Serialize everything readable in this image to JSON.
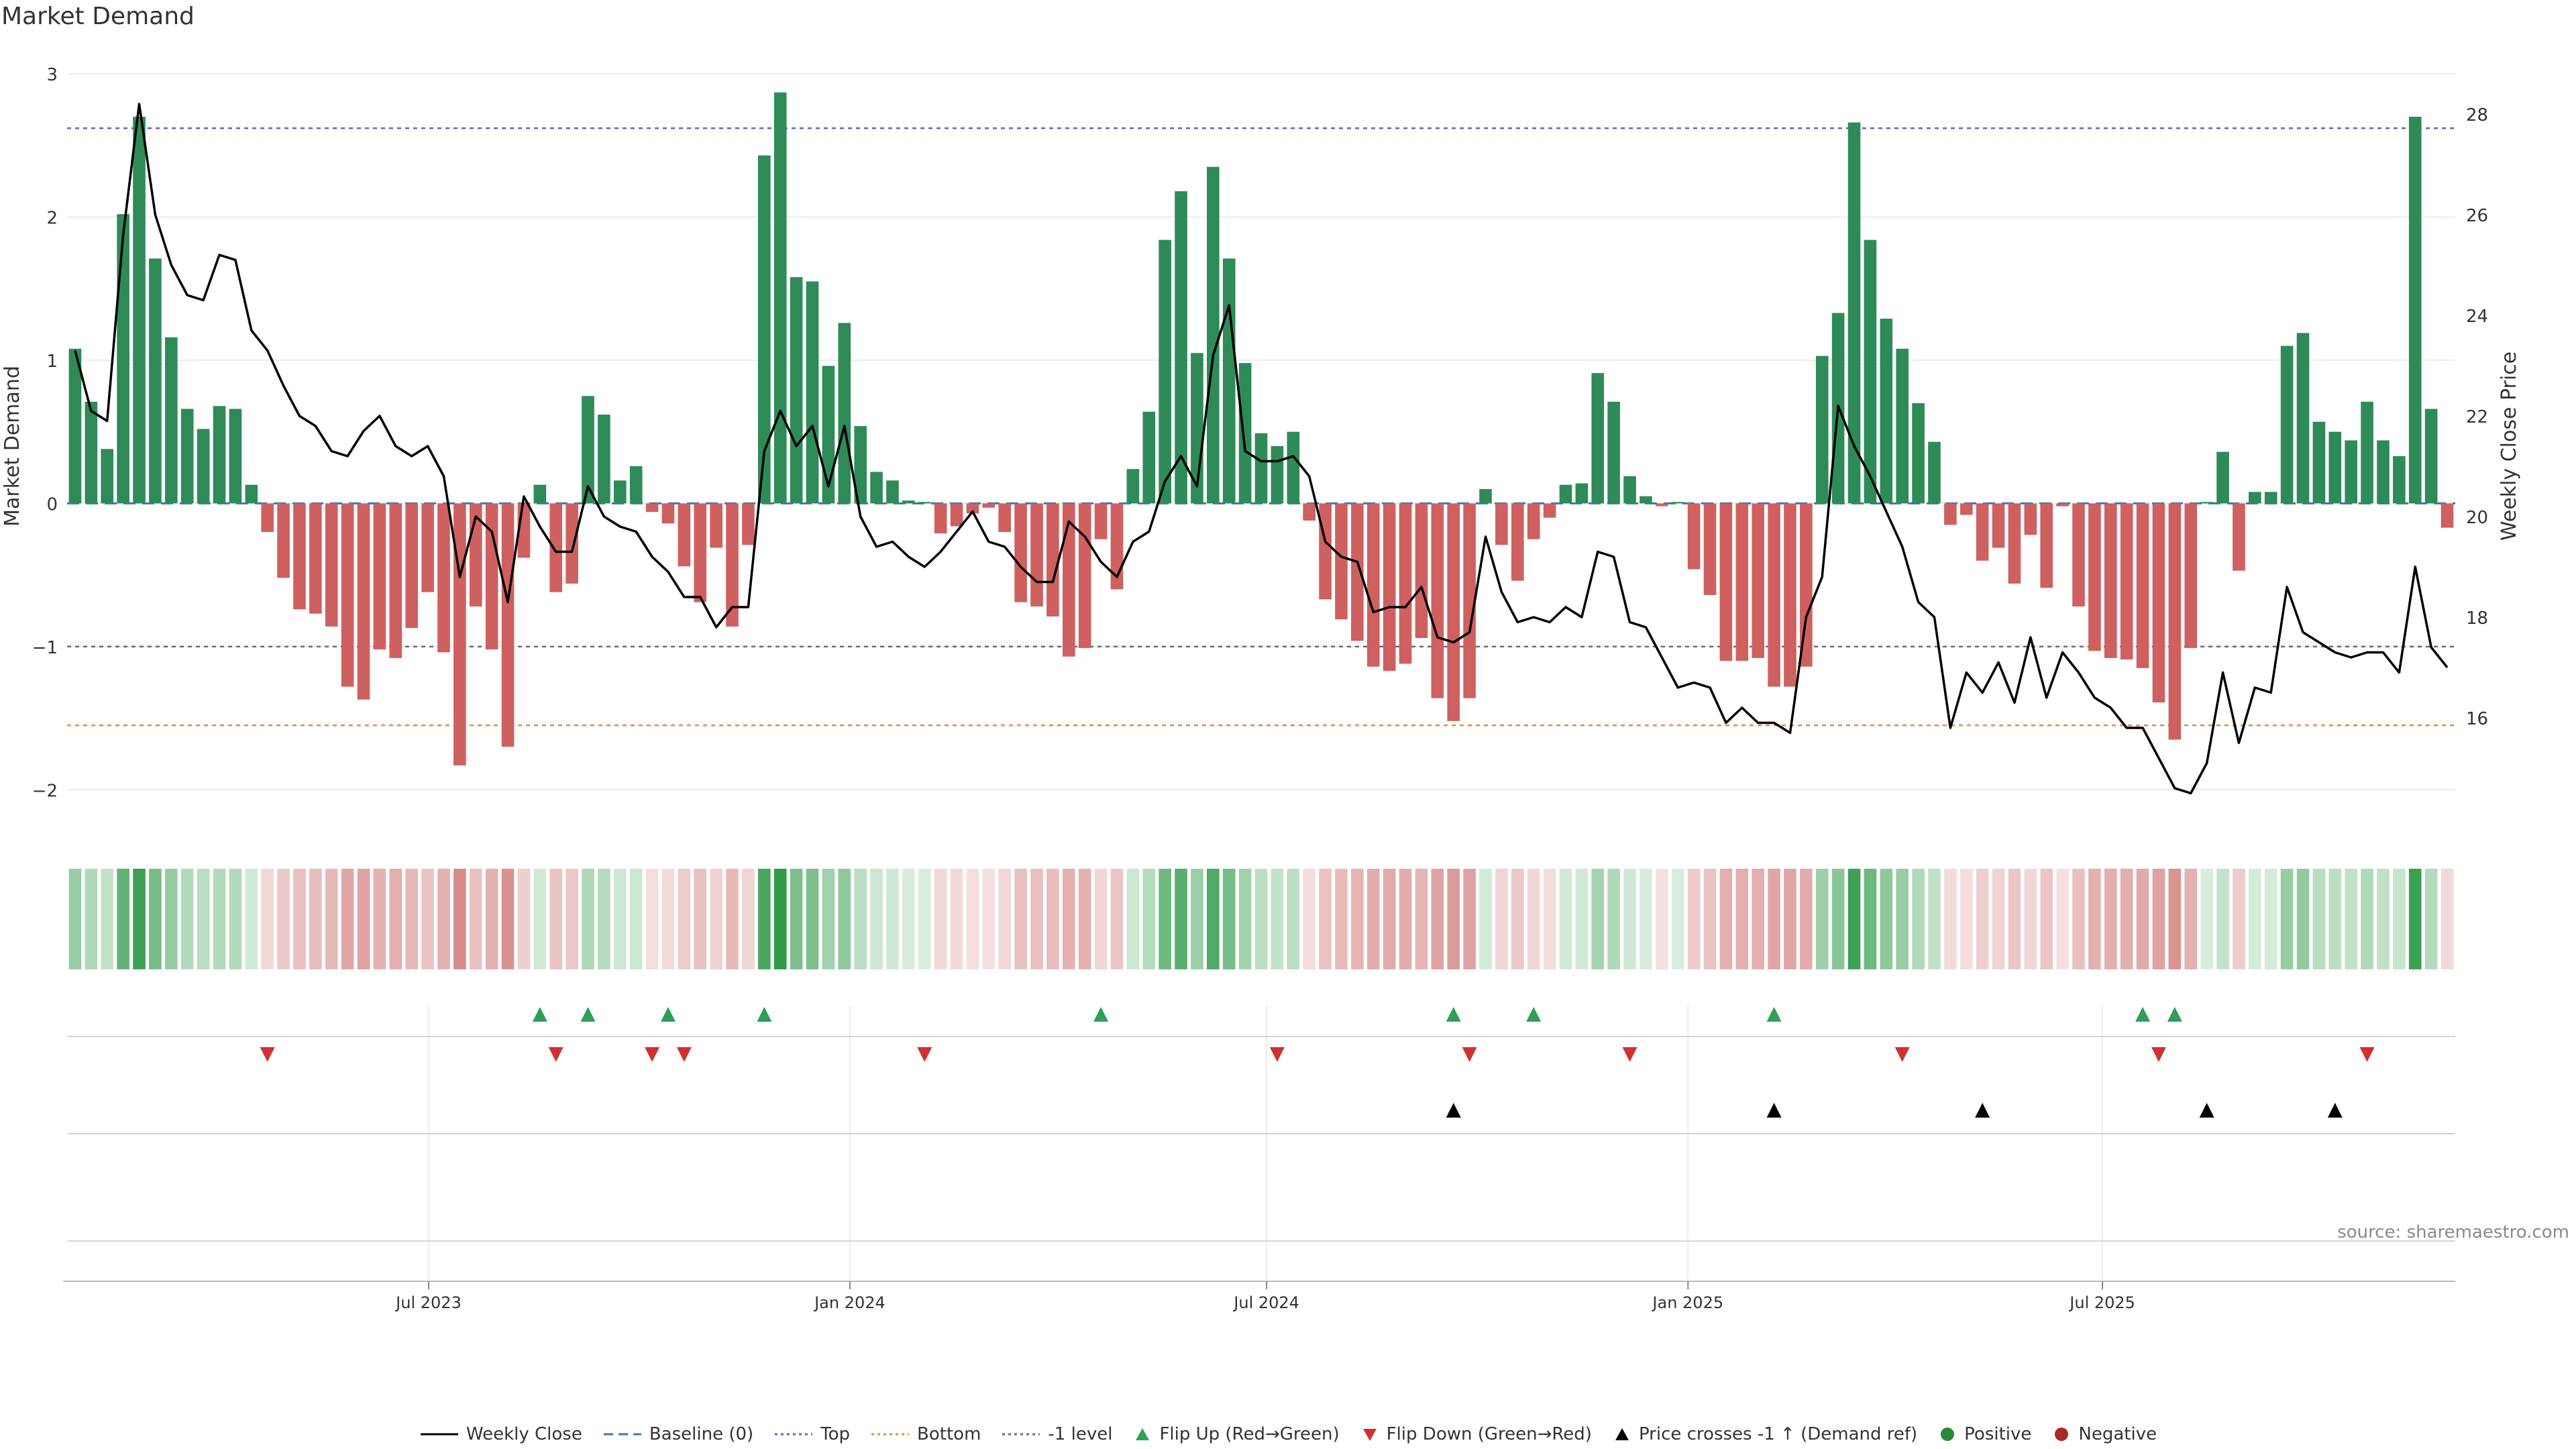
{
  "title": "Market Demand",
  "source": "source: sharemaestro.com",
  "chart_data": {
    "type": "bar",
    "title": "Market Demand",
    "xlabel": "",
    "ylabel": "Market Demand",
    "y2label": "Weekly Close Price",
    "ylim": [
      -2.2,
      3.0
    ],
    "y2lim": [
      14.0,
      28.8
    ],
    "yticks": [
      3,
      2,
      1,
      0,
      -1,
      -2
    ],
    "y2ticks": [
      28,
      26,
      24,
      22,
      20,
      18,
      16
    ],
    "ytick_labels": [
      "3",
      "2",
      "1",
      "0",
      "−1",
      "−2"
    ],
    "y2tick_labels": [
      "28",
      "26",
      "24",
      "22",
      "20",
      "18",
      "16"
    ],
    "x_start": "2023-01-06",
    "x_interval_days": 7,
    "xticks": [
      {
        "label": "Jul 2023",
        "index": 22.06
      },
      {
        "label": "Jan 2024",
        "index": 48.34
      },
      {
        "label": "Jul 2024",
        "index": 74.34
      },
      {
        "label": "Jan 2025",
        "index": 100.63
      },
      {
        "label": "Jul 2025",
        "index": 126.49
      }
    ],
    "reference_lines": [
      {
        "name": "Top",
        "value": 2.62,
        "color": "#6f5fb5"
      },
      {
        "name": "-1 level",
        "value": -1.0,
        "color": "#6a6a7a"
      },
      {
        "name": "Bottom",
        "value": -1.55,
        "color": "#d9962a"
      },
      {
        "name": "Baseline (0)",
        "value": 0,
        "color": "#3a76b6"
      }
    ],
    "series": [
      {
        "name": "Market Demand",
        "axis": "left",
        "values": [
          1.08,
          0.71,
          0.38,
          2.02,
          2.7,
          1.71,
          1.16,
          0.66,
          0.52,
          0.68,
          0.66,
          0.13,
          -0.2,
          -0.52,
          -0.74,
          -0.77,
          -0.86,
          -1.28,
          -1.37,
          -1.02,
          -1.08,
          -0.87,
          -0.62,
          -1.04,
          -1.83,
          -0.72,
          -1.02,
          -1.7,
          -0.38,
          0.13,
          -0.62,
          -0.56,
          0.75,
          0.62,
          0.16,
          0.26,
          -0.06,
          -0.14,
          -0.44,
          -0.69,
          -0.31,
          -0.86,
          -0.29,
          2.43,
          2.87,
          1.58,
          1.55,
          0.96,
          1.26,
          0.54,
          0.22,
          0.16,
          0.02,
          0.01,
          -0.21,
          -0.16,
          -0.07,
          -0.03,
          -0.2,
          -0.69,
          -0.72,
          -0.79,
          -1.07,
          -1.01,
          -0.25,
          -0.6,
          0.24,
          0.64,
          1.84,
          2.18,
          1.05,
          2.35,
          1.71,
          0.98,
          0.49,
          0.4,
          0.5,
          -0.12,
          -0.67,
          -0.81,
          -0.96,
          -1.14,
          -1.17,
          -1.12,
          -0.94,
          -1.36,
          -1.52,
          -1.36,
          0.1,
          -0.29,
          -0.54,
          -0.25,
          -0.1,
          0.13,
          0.14,
          0.91,
          0.71,
          0.19,
          0.05,
          -0.02,
          0.01,
          -0.46,
          -0.64,
          -1.1,
          -1.1,
          -1.08,
          -1.28,
          -1.28,
          -1.14,
          1.03,
          1.33,
          2.66,
          1.84,
          1.29,
          1.08,
          0.7,
          0.43,
          -0.15,
          -0.08,
          -0.4,
          -0.31,
          -0.56,
          -0.22,
          -0.59,
          -0.02,
          -0.72,
          -1.03,
          -1.08,
          -1.09,
          -1.15,
          -1.39,
          -1.65,
          -1.01,
          0.01,
          0.36,
          -0.47,
          0.08,
          0.08,
          1.1,
          1.19,
          0.57,
          0.5,
          0.44,
          0.71,
          0.44,
          0.33,
          2.7,
          0.66,
          -0.17
        ]
      },
      {
        "name": "Weekly Close",
        "axis": "right",
        "values": [
          23.3,
          22.1,
          21.9,
          25.6,
          28.2,
          26.0,
          25.0,
          24.4,
          24.3,
          25.2,
          25.1,
          23.7,
          23.3,
          22.6,
          22.0,
          21.8,
          21.3,
          21.2,
          21.7,
          22.0,
          21.4,
          21.2,
          21.4,
          20.8,
          18.8,
          20.0,
          19.7,
          18.3,
          20.4,
          19.8,
          19.3,
          19.3,
          20.6,
          20.0,
          19.8,
          19.7,
          19.2,
          18.9,
          18.4,
          18.4,
          17.8,
          18.2,
          18.2,
          21.3,
          22.1,
          21.4,
          21.8,
          20.6,
          21.8,
          20.0,
          19.4,
          19.5,
          19.2,
          19.0,
          19.3,
          19.7,
          20.1,
          19.5,
          19.4,
          19.0,
          18.7,
          18.7,
          19.9,
          19.6,
          19.1,
          18.8,
          19.5,
          19.7,
          20.7,
          21.2,
          20.6,
          23.2,
          24.2,
          21.3,
          21.1,
          21.1,
          21.2,
          20.8,
          19.5,
          19.2,
          19.1,
          18.1,
          18.2,
          18.2,
          18.6,
          17.6,
          17.5,
          17.7,
          19.6,
          18.5,
          17.9,
          18.0,
          17.9,
          18.2,
          18.0,
          19.3,
          19.2,
          17.9,
          17.8,
          17.2,
          16.6,
          16.7,
          16.6,
          15.9,
          16.2,
          15.9,
          15.9,
          15.7,
          18.0,
          18.8,
          22.2,
          21.4,
          20.8,
          20.1,
          19.4,
          18.3,
          18.0,
          15.8,
          16.9,
          16.5,
          17.1,
          16.3,
          17.6,
          16.4,
          17.3,
          16.9,
          16.4,
          16.2,
          15.8,
          15.8,
          15.2,
          14.6,
          14.5,
          15.1,
          16.9,
          15.5,
          16.6,
          16.5,
          18.6,
          17.7,
          17.5,
          17.3,
          17.2,
          17.3,
          17.3,
          16.9,
          19.0,
          17.4,
          17.0
        ]
      }
    ],
    "flip_up_indices": [
      29,
      32,
      37,
      43,
      64,
      86,
      91,
      106,
      129,
      131
    ],
    "flip_down_indices": [
      12,
      30,
      36,
      38,
      53,
      75,
      87,
      97,
      114,
      130,
      143
    ],
    "price_cross_indices": [
      86,
      106,
      119,
      133,
      141
    ],
    "strip": {
      "positive_color": "#2e8b57",
      "negative_color": "#c65a5a",
      "max_abs": 2.9
    },
    "legend": [
      {
        "label": "Weekly Close",
        "symbol": "line-solid",
        "color": "#000000"
      },
      {
        "label": "Baseline (0)",
        "symbol": "line-dashed",
        "color": "#3a76b6"
      },
      {
        "label": "Top",
        "symbol": "line-dotted",
        "color": "#6f5fb5"
      },
      {
        "label": "Bottom",
        "symbol": "line-dotted",
        "color": "#d9962a"
      },
      {
        "label": "-1 level",
        "symbol": "line-dotted",
        "color": "#6a6a7a"
      },
      {
        "label": "Flip Up (Red→Green)",
        "symbol": "triangle-up",
        "color": "#2e9e58"
      },
      {
        "label": "Flip Down (Green→Red)",
        "symbol": "triangle-down",
        "color": "#d23030"
      },
      {
        "label": "Price crosses -1 ↑ (Demand ref)",
        "symbol": "triangle-up",
        "color": "#000000"
      },
      {
        "label": "Positive",
        "symbol": "dot",
        "color": "#2a8a3a"
      },
      {
        "label": "Negative",
        "symbol": "dot",
        "color": "#a82a2a"
      }
    ]
  }
}
